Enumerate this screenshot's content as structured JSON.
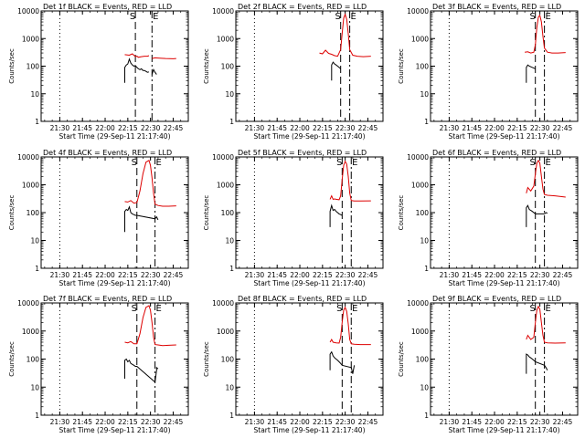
{
  "chart_data": [
    {
      "type": "line",
      "title": "Det 1f BLACK = Events, RED = LLD",
      "xlabel": "Start Time (29-Sep-11 21:17:40)",
      "ylabel": "Counts/sec",
      "yscale": "log",
      "ylim": [
        1,
        10000
      ],
      "xlim": [
        "21:17:40",
        "22:55:00"
      ],
      "xticks": [
        "21:30",
        "21:45",
        "22:00",
        "22:15",
        "22:30",
        "22:45"
      ],
      "yticks": [
        "1",
        "10",
        "100",
        "1000",
        "10000"
      ],
      "markers": {
        "dotted": "21:30",
        "S": "22:20",
        "E": "22:31"
      },
      "series": [
        {
          "name": "Events",
          "color": "#000000",
          "x": [
            "22:13",
            "22:13",
            "22:14",
            "22:15",
            "22:16",
            "22:17",
            "22:18",
            "22:19",
            "22:20",
            "22:21",
            "22:22",
            "22:23",
            "22:24",
            "22:25",
            "22:26",
            "22:27",
            "22:28",
            "22:29",
            "22:30",
            "22:31",
            "22:32",
            "22:33",
            "22:34"
          ],
          "y": [
            25,
            90,
            110,
            120,
            180,
            130,
            110,
            100,
            105,
            90,
            80,
            75,
            80,
            70,
            70,
            65,
            60,
            62,
            null,
            50,
            75,
            60,
            50
          ]
        },
        {
          "name": "LLD",
          "color": "#dd0000",
          "x": [
            "22:13",
            "22:16",
            "22:18",
            "22:20",
            "22:21",
            "22:22",
            "22:24",
            "22:26",
            "22:28",
            "22:29",
            "22:30",
            "22:31",
            "22:33",
            "22:36",
            "22:40",
            "22:45",
            "22:47"
          ],
          "y": [
            260,
            250,
            280,
            220,
            230,
            210,
            220,
            230,
            230,
            240,
            null,
            190,
            200,
            195,
            190,
            185,
            190
          ]
        }
      ]
    },
    {
      "type": "line",
      "title": "Det 2f BLACK = Events, RED = LLD",
      "xlabel": "Start Time (29-Sep-11 21:17:40)",
      "ylabel": "Counts/sec",
      "yscale": "log",
      "ylim": [
        1,
        10000
      ],
      "xlim": [
        "21:17:40",
        "22:55:00"
      ],
      "xticks": [
        "21:30",
        "21:45",
        "22:00",
        "22:15",
        "22:30",
        "22:45"
      ],
      "yticks": [
        "1",
        "10",
        "100",
        "1000",
        "10000"
      ],
      "markers": {
        "dotted": "21:30",
        "S": "22:27",
        "E": "22:33"
      },
      "series": [
        {
          "name": "Events",
          "color": "#000000",
          "x": [
            "22:21",
            "22:21",
            "22:22",
            "22:23",
            "22:24",
            "22:25",
            "22:26",
            "22:27"
          ],
          "y": [
            30,
            110,
            140,
            120,
            110,
            100,
            90,
            80
          ]
        },
        {
          "name": "LLD",
          "color": "#dd0000",
          "x": [
            "22:13",
            "22:15",
            "22:17",
            "22:19",
            "22:21",
            "22:23",
            "22:25",
            "22:27",
            "22:28",
            "22:29",
            "22:30",
            "22:31",
            "22:32",
            "22:33",
            "22:35",
            "22:38",
            "22:42",
            "22:47"
          ],
          "y": [
            300,
            280,
            380,
            290,
            270,
            240,
            230,
            400,
            1500,
            5500,
            7500,
            5000,
            1500,
            400,
            250,
            230,
            220,
            230
          ]
        }
      ]
    },
    {
      "type": "line",
      "title": "Det 3f BLACK = Events, RED = LLD",
      "xlabel": "Start Time (29-Sep-11 21:17:40)",
      "ylabel": "Counts/sec",
      "yscale": "log",
      "ylim": [
        1,
        10000
      ],
      "xlim": [
        "21:17:40",
        "22:55:00"
      ],
      "xticks": [
        "21:30",
        "21:45",
        "22:00",
        "22:15",
        "22:30",
        "22:45"
      ],
      "yticks": [
        "1",
        "10",
        "100",
        "1000",
        "10000"
      ],
      "markers": {
        "dotted": "21:30",
        "S": "22:27",
        "E": "22:33"
      },
      "series": [
        {
          "name": "Events",
          "color": "#000000",
          "x": [
            "22:21",
            "22:21",
            "22:22",
            "22:23",
            "22:24",
            "22:25",
            "22:26",
            "22:27"
          ],
          "y": [
            25,
            90,
            110,
            100,
            95,
            90,
            85,
            80
          ]
        },
        {
          "name": "LLD",
          "color": "#dd0000",
          "x": [
            "22:20",
            "22:22",
            "22:24",
            "22:26",
            "22:27",
            "22:28",
            "22:29",
            "22:30",
            "22:31",
            "22:32",
            "22:33",
            "22:35",
            "22:38",
            "22:42",
            "22:47"
          ],
          "y": [
            320,
            330,
            300,
            320,
            600,
            2500,
            6000,
            7000,
            4000,
            1200,
            450,
            320,
            300,
            300,
            310
          ]
        }
      ]
    },
    {
      "type": "line",
      "title": "Det 4f BLACK = Events, RED = LLD",
      "xlabel": "Start Time (29-Sep-11 21:17:40)",
      "ylabel": "Counts/sec",
      "yscale": "log",
      "ylim": [
        1,
        10000
      ],
      "xlim": [
        "21:17:40",
        "22:55:00"
      ],
      "xticks": [
        "21:30",
        "21:45",
        "22:00",
        "22:15",
        "22:30",
        "22:45"
      ],
      "yticks": [
        "1",
        "10",
        "100",
        "1000",
        "10000"
      ],
      "markers": {
        "dotted": "21:30",
        "S": "22:21",
        "E": "22:33"
      },
      "series": [
        {
          "name": "Events",
          "color": "#000000",
          "x": [
            "22:13",
            "22:13",
            "22:14",
            "22:15",
            "22:16",
            "22:17",
            "22:18",
            "22:19",
            "22:20",
            "22:21",
            "22:33",
            "22:34",
            "22:35"
          ],
          "y": [
            20,
            110,
            130,
            120,
            160,
            100,
            90,
            85,
            80,
            80,
            60,
            70,
            55
          ]
        },
        {
          "name": "LLD",
          "color": "#dd0000",
          "x": [
            "22:13",
            "22:15",
            "22:17",
            "22:19",
            "22:21",
            "22:23",
            "22:25",
            "22:27",
            "22:29",
            "22:30",
            "22:31",
            "22:32",
            "22:33",
            "22:35",
            "22:38",
            "22:42",
            "22:47"
          ],
          "y": [
            250,
            240,
            270,
            220,
            230,
            600,
            2500,
            6500,
            7500,
            5000,
            1800,
            500,
            200,
            180,
            170,
            170,
            175
          ]
        }
      ]
    },
    {
      "type": "line",
      "title": "Det 5f BLACK = Events, RED = LLD",
      "xlabel": "Start Time (29-Sep-11 21:17:40)",
      "ylabel": "Counts/sec",
      "yscale": "log",
      "ylim": [
        1,
        10000
      ],
      "xlim": [
        "21:17:40",
        "22:55:00"
      ],
      "xticks": [
        "21:30",
        "21:45",
        "22:00",
        "22:15",
        "22:30",
        "22:45"
      ],
      "yticks": [
        "1",
        "10",
        "100",
        "1000",
        "10000"
      ],
      "markers": {
        "dotted": "21:30",
        "S": "22:28",
        "E": "22:34"
      },
      "series": [
        {
          "name": "Events",
          "color": "#000000",
          "x": [
            "22:20",
            "22:20",
            "22:21",
            "22:22",
            "22:23",
            "22:24",
            "22:25",
            "22:26",
            "22:27",
            "22:28"
          ],
          "y": [
            30,
            110,
            180,
            120,
            130,
            110,
            100,
            90,
            85,
            80
          ]
        },
        {
          "name": "LLD",
          "color": "#dd0000",
          "x": [
            "22:20",
            "22:21",
            "22:22",
            "22:23",
            "22:24",
            "22:26",
            "22:27",
            "22:28",
            "22:29",
            "22:30",
            "22:31",
            "22:32",
            "22:33",
            "22:34",
            "22:36",
            "22:40",
            "22:47"
          ],
          "y": [
            300,
            400,
            300,
            310,
            300,
            290,
            400,
            1500,
            5000,
            7000,
            5500,
            2000,
            500,
            270,
            260,
            260,
            265
          ]
        }
      ]
    },
    {
      "type": "line",
      "title": "Det 6f BLACK = Events, RED = LLD",
      "xlabel": "Start Time (29-Sep-11 21:17:40)",
      "ylabel": "Counts/sec",
      "yscale": "log",
      "ylim": [
        1,
        10000
      ],
      "xlim": [
        "21:17:40",
        "22:55:00"
      ],
      "xticks": [
        "21:30",
        "21:45",
        "22:00",
        "22:15",
        "22:30",
        "22:45"
      ],
      "yticks": [
        "1",
        "10",
        "100",
        "1000",
        "10000"
      ],
      "markers": {
        "dotted": "21:30",
        "S": "22:27",
        "E": "22:33"
      },
      "series": [
        {
          "name": "Events",
          "color": "#000000",
          "x": [
            "22:21",
            "22:21",
            "22:22",
            "22:23",
            "22:24",
            "22:25",
            "22:26",
            "22:27",
            "22:33",
            "22:34",
            "22:35"
          ],
          "y": [
            30,
            150,
            180,
            130,
            120,
            110,
            100,
            90,
            90,
            100,
            95
          ]
        },
        {
          "name": "LLD",
          "color": "#dd0000",
          "x": [
            "22:21",
            "22:22",
            "22:24",
            "22:26",
            "22:27",
            "22:28",
            "22:29",
            "22:30",
            "22:31",
            "22:32",
            "22:33",
            "22:35",
            "22:40",
            "22:47"
          ],
          "y": [
            500,
            800,
            600,
            900,
            2500,
            6000,
            7500,
            6000,
            2000,
            700,
            450,
            420,
            400,
            360
          ]
        }
      ]
    },
    {
      "type": "line",
      "title": "Det 7f BLACK = Events, RED = LLD",
      "xlabel": "Start Time (29-Sep-11 21:17:40)",
      "ylabel": "Counts/sec",
      "yscale": "log",
      "ylim": [
        1,
        10000
      ],
      "xlim": [
        "21:17:40",
        "22:55:00"
      ],
      "xticks": [
        "21:30",
        "21:45",
        "22:00",
        "22:15",
        "22:30",
        "22:45"
      ],
      "yticks": [
        "1",
        "10",
        "100",
        "1000",
        "10000"
      ],
      "markers": {
        "dotted": "21:30",
        "S": "22:21",
        "E": "22:33"
      },
      "series": [
        {
          "name": "Events",
          "color": "#000000",
          "x": [
            "22:13",
            "22:13",
            "22:14",
            "22:15",
            "22:16",
            "22:17",
            "22:18",
            "22:19",
            "22:20",
            "22:21",
            "22:33",
            "22:34",
            "22:34",
            "22:35"
          ],
          "y": [
            20,
            90,
            100,
            80,
            90,
            70,
            65,
            60,
            55,
            55,
            15,
            40,
            50,
            45
          ]
        },
        {
          "name": "LLD",
          "color": "#dd0000",
          "x": [
            "22:13",
            "22:15",
            "22:17",
            "22:19",
            "22:21",
            "22:23",
            "22:25",
            "22:27",
            "22:29",
            "22:30",
            "22:31",
            "22:32",
            "22:33",
            "22:35",
            "22:38",
            "22:42",
            "22:47"
          ],
          "y": [
            400,
            380,
            420,
            350,
            350,
            800,
            3000,
            7000,
            8000,
            5500,
            2000,
            600,
            330,
            320,
            300,
            310,
            320
          ]
        }
      ]
    },
    {
      "type": "line",
      "title": "Det 8f BLACK = Events, RED = LLD",
      "xlabel": "Start Time (29-Sep-11 21:17:40)",
      "ylabel": "Counts/sec",
      "yscale": "log",
      "ylim": [
        1,
        10000
      ],
      "xlim": [
        "21:17:40",
        "22:55:00"
      ],
      "xticks": [
        "21:30",
        "21:45",
        "22:00",
        "22:15",
        "22:30",
        "22:45"
      ],
      "yticks": [
        "1",
        "10",
        "100",
        "1000",
        "10000"
      ],
      "markers": {
        "dotted": "21:30",
        "S": "22:28",
        "E": "22:34"
      },
      "series": [
        {
          "name": "Events",
          "color": "#000000",
          "x": [
            "22:20",
            "22:20",
            "22:21",
            "22:22",
            "22:23",
            "22:24",
            "22:25",
            "22:26",
            "22:27",
            "22:28",
            "22:34",
            "22:35",
            "22:36"
          ],
          "y": [
            40,
            150,
            180,
            130,
            110,
            100,
            90,
            80,
            70,
            60,
            50,
            30,
            60
          ]
        },
        {
          "name": "LLD",
          "color": "#dd0000",
          "x": [
            "22:20",
            "22:21",
            "22:22",
            "22:24",
            "22:26",
            "22:27",
            "22:28",
            "22:29",
            "22:30",
            "22:31",
            "22:32",
            "22:33",
            "22:34",
            "22:36",
            "22:40",
            "22:47"
          ],
          "y": [
            400,
            500,
            400,
            380,
            370,
            600,
            2000,
            5500,
            7000,
            5000,
            1800,
            500,
            350,
            340,
            330,
            330
          ]
        }
      ]
    },
    {
      "type": "line",
      "title": "Det 9f BLACK = Events, RED = LLD",
      "xlabel": "Start Time (29-Sep-11 21:17:40)",
      "ylabel": "Counts/sec",
      "yscale": "log",
      "ylim": [
        1,
        10000
      ],
      "xlim": [
        "21:17:40",
        "22:55:00"
      ],
      "xticks": [
        "21:30",
        "21:45",
        "22:00",
        "22:15",
        "22:30",
        "22:45"
      ],
      "yticks": [
        "1",
        "10",
        "100",
        "1000",
        "10000"
      ],
      "markers": {
        "dotted": "21:30",
        "S": "22:27",
        "E": "22:33"
      },
      "series": [
        {
          "name": "Events",
          "color": "#000000",
          "x": [
            "22:21",
            "22:21",
            "22:22",
            "22:23",
            "22:24",
            "22:25",
            "22:26",
            "22:27",
            "22:33",
            "22:34",
            "22:35"
          ],
          "y": [
            30,
            150,
            140,
            120,
            110,
            100,
            90,
            80,
            60,
            50,
            40
          ]
        },
        {
          "name": "LLD",
          "color": "#dd0000",
          "x": [
            "22:21",
            "22:22",
            "22:24",
            "22:26",
            "22:27",
            "22:28",
            "22:29",
            "22:30",
            "22:31",
            "22:32",
            "22:33",
            "22:35",
            "22:40",
            "22:47"
          ],
          "y": [
            500,
            700,
            500,
            600,
            2000,
            5500,
            7500,
            6000,
            2000,
            700,
            400,
            380,
            370,
            380
          ]
        }
      ]
    }
  ]
}
